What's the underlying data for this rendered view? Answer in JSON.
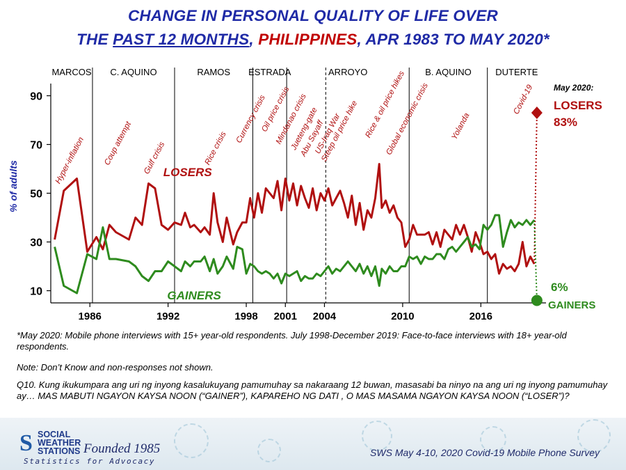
{
  "title": {
    "line1": "CHANGE IN PERSONAL QUALITY OF LIFE OVER",
    "line2_prefix": "THE ",
    "line2_underlined": "PAST 12 MONTHS",
    "line2_sep1": ", ",
    "line2_country": "PHILIPPINES",
    "line2_rest": ", APR 1983 TO MAY 2020*"
  },
  "colors": {
    "losers": "#b01010",
    "gainers": "#2e8b1e",
    "title_blue": "#1f2aa6",
    "title_red": "#c00000"
  },
  "chart_data": {
    "type": "line",
    "title": "CHANGE IN PERSONAL QUALITY OF LIFE OVER THE PAST 12 MONTHS, PHILIPPINES, APR 1983 TO MAY 2020*",
    "ylabel": "% of adults",
    "xlabel": "",
    "xlim": [
      1983.0,
      2021.0
    ],
    "ylim": [
      5,
      95
    ],
    "yticks": [
      10,
      30,
      50,
      70,
      90
    ],
    "xticks": [
      1986,
      1992,
      1998,
      2001,
      2004,
      2010,
      2016
    ],
    "administrations": [
      {
        "name": "MARCOS",
        "start": 1983.0,
        "end": 1986.2
      },
      {
        "name": "C. AQUINO",
        "start": 1986.2,
        "end": 1992.5
      },
      {
        "name": "RAMOS",
        "start": 1992.5,
        "end": 1998.5
      },
      {
        "name": "ESTRADA",
        "start": 1998.5,
        "end": 2001.1
      },
      {
        "name": "ARROYO",
        "start": 2001.1,
        "end": 2010.5
      },
      {
        "name": "B. AQUINO",
        "start": 2010.5,
        "end": 2016.5
      },
      {
        "name": "DUTERTE",
        "start": 2016.5,
        "end": 2021.0
      }
    ],
    "dashed_dividers": [
      2004.1
    ],
    "series": [
      {
        "name": "LOSERS",
        "x": [
          1983.3,
          1984.0,
          1985.0,
          1985.8,
          1986.5,
          1987.0,
          1987.5,
          1988.0,
          1989.0,
          1989.5,
          1990.0,
          1990.5,
          1991.0,
          1991.5,
          1992.0,
          1992.5,
          1993.0,
          1993.3,
          1993.7,
          1994.0,
          1994.5,
          1994.8,
          1995.2,
          1995.5,
          1995.8,
          1996.2,
          1996.5,
          1997.0,
          1997.3,
          1997.7,
          1998.0,
          1998.3,
          1998.6,
          1998.9,
          1999.2,
          1999.5,
          1999.8,
          2000.1,
          2000.4,
          2000.7,
          2001.0,
          2001.3,
          2001.6,
          2001.9,
          2002.2,
          2002.5,
          2002.8,
          2003.1,
          2003.4,
          2003.7,
          2004.0,
          2004.3,
          2004.6,
          2004.9,
          2005.2,
          2005.5,
          2005.8,
          2006.1,
          2006.4,
          2006.7,
          2007.0,
          2007.3,
          2007.6,
          2007.9,
          2008.2,
          2008.4,
          2008.7,
          2009.0,
          2009.3,
          2009.6,
          2009.9,
          2010.2,
          2010.5,
          2010.8,
          2011.1,
          2011.4,
          2011.7,
          2012.0,
          2012.3,
          2012.6,
          2012.9,
          2013.2,
          2013.5,
          2013.8,
          2014.1,
          2014.4,
          2014.7,
          2015.0,
          2015.3,
          2015.6,
          2015.9,
          2016.2,
          2016.5,
          2016.8,
          2017.1,
          2017.4,
          2017.7,
          2018.0,
          2018.3,
          2018.6,
          2018.9,
          2019.2,
          2019.5,
          2019.8,
          2020.1
        ],
        "values": [
          31,
          51,
          56,
          26,
          32,
          27,
          37,
          34,
          31,
          40,
          37,
          54,
          52,
          37,
          35,
          38,
          37,
          42,
          36,
          37,
          34,
          36,
          33,
          50,
          38,
          30,
          40,
          29,
          34,
          38,
          38,
          48,
          40,
          50,
          42,
          52,
          50,
          48,
          55,
          43,
          56,
          47,
          54,
          45,
          53,
          48,
          44,
          52,
          43,
          50,
          47,
          52,
          45,
          48,
          51,
          46,
          40,
          49,
          37,
          46,
          35,
          43,
          40,
          48,
          62,
          44,
          47,
          42,
          45,
          40,
          38,
          28,
          31,
          37,
          33,
          33,
          33,
          34,
          29,
          34,
          28,
          35,
          33,
          31,
          37,
          33,
          37,
          32,
          26,
          34,
          30,
          25,
          26,
          23,
          25,
          17,
          21,
          19,
          20,
          18,
          21,
          30,
          20,
          24,
          21
        ]
      },
      {
        "name": "GAINERS",
        "x": [
          1983.3,
          1984.0,
          1985.0,
          1985.8,
          1986.5,
          1987.0,
          1987.5,
          1988.0,
          1989.0,
          1989.5,
          1990.0,
          1990.5,
          1991.0,
          1991.5,
          1992.0,
          1992.5,
          1993.0,
          1993.3,
          1993.7,
          1994.0,
          1994.5,
          1994.8,
          1995.2,
          1995.5,
          1995.8,
          1996.2,
          1996.5,
          1997.0,
          1997.3,
          1997.7,
          1998.0,
          1998.3,
          1998.6,
          1998.9,
          1999.2,
          1999.5,
          1999.8,
          2000.1,
          2000.4,
          2000.7,
          2001.0,
          2001.3,
          2001.6,
          2001.9,
          2002.2,
          2002.5,
          2002.8,
          2003.1,
          2003.4,
          2003.7,
          2004.0,
          2004.3,
          2004.6,
          2004.9,
          2005.2,
          2005.5,
          2005.8,
          2006.1,
          2006.4,
          2006.7,
          2007.0,
          2007.3,
          2007.6,
          2007.9,
          2008.2,
          2008.4,
          2008.7,
          2009.0,
          2009.3,
          2009.6,
          2009.9,
          2010.2,
          2010.5,
          2010.8,
          2011.1,
          2011.4,
          2011.7,
          2012.0,
          2012.3,
          2012.6,
          2012.9,
          2013.2,
          2013.5,
          2013.8,
          2014.1,
          2014.4,
          2014.7,
          2015.0,
          2015.3,
          2015.6,
          2015.9,
          2016.2,
          2016.5,
          2016.8,
          2017.1,
          2017.4,
          2017.7,
          2018.0,
          2018.3,
          2018.6,
          2018.9,
          2019.2,
          2019.5,
          2019.8,
          2020.1
        ],
        "values": [
          28,
          12,
          9,
          25,
          23,
          36,
          23,
          23,
          22,
          20,
          16,
          14,
          18,
          18,
          22,
          20,
          18,
          22,
          20,
          22,
          22,
          24,
          18,
          23,
          17,
          20,
          24,
          19,
          28,
          27,
          17,
          21,
          20,
          18,
          17,
          18,
          17,
          15,
          17,
          13,
          17,
          16,
          17,
          18,
          14,
          16,
          15,
          15,
          17,
          16,
          18,
          20,
          17,
          19,
          18,
          20,
          22,
          20,
          18,
          21,
          17,
          20,
          16,
          20,
          12,
          19,
          17,
          20,
          18,
          18,
          20,
          20,
          24,
          23,
          24,
          21,
          24,
          23,
          23,
          25,
          25,
          23,
          27,
          28,
          26,
          28,
          30,
          32,
          28,
          29,
          27,
          37,
          35,
          37,
          41,
          41,
          28,
          34,
          39,
          36,
          38,
          37,
          39,
          37,
          39
        ]
      }
    ],
    "may_2020": {
      "x": 2020.3,
      "losers": 83,
      "gainers": 6,
      "connect_from_losers": 21,
      "connect_from_gainers": 39
    },
    "series_labels": {
      "losers": "LOSERS",
      "gainers": "GAINERS"
    },
    "callout": {
      "header": "May 2020:",
      "losers_label": "LOSERS",
      "losers_value": "83%",
      "gainers_value": "6%",
      "gainers_label": "GAINERS"
    },
    "annotations": [
      {
        "text": "Hyper-inflation",
        "x": 1984.6,
        "y": 63
      },
      {
        "text": "Coup attempt",
        "x": 1988.3,
        "y": 70
      },
      {
        "text": "Gulf crisis",
        "x": 1991.1,
        "y": 64
      },
      {
        "text": "Rice crisis",
        "x": 1995.8,
        "y": 68
      },
      {
        "text": "Currency crisis",
        "x": 1998.5,
        "y": 80
      },
      {
        "text": "Oil price crisis",
        "x": 2000.4,
        "y": 84
      },
      {
        "text": "Mindanao crisis",
        "x": 2001.6,
        "y": 80
      },
      {
        "text": "Jueteng-gate",
        "x": 2002.6,
        "y": 76
      },
      {
        "text": "Abu Sayaff",
        "x": 2003.2,
        "y": 72
      },
      {
        "text": "US-Iraq War",
        "x": 2004.4,
        "y": 74
      },
      {
        "text": "Steep oil price hike",
        "x": 2005.3,
        "y": 75
      },
      {
        "text": "Rice & oil price hikes",
        "x": 2008.8,
        "y": 86
      },
      {
        "text": "Global economic crisis",
        "x": 2010.5,
        "y": 80
      },
      {
        "text": "Yolanda",
        "x": 2014.6,
        "y": 77
      },
      {
        "text": "Covid-19",
        "x": 2019.4,
        "y": 88
      }
    ]
  },
  "footnotes": {
    "note1": "*May 2020: Mobile phone interviews with 15+ year-old respondents. July 1998-December 2019: Face-to-face interviews with 18+ year-old respondents.",
    "note2": "Note: Don’t Know and non-responses not shown.",
    "question": "Q10. Kung ikukumpara ang uri ng inyong kasalukuyang pamumuhay sa nakaraang 12 buwan, masasabi ba ninyo na ang uri ng inyong pamumuhay ay… MAS MABUTI NGAYON KAYSA NOON (“GAINER”), KAPAREHO NG DATI , O MAS MASAMA NGAYON KAYSA NOON (“LOSER”)?"
  },
  "branding": {
    "logo_icon": "sws-s-logo-icon",
    "org_line1": "SOCIAL",
    "org_line2": "WEATHER",
    "org_line3": "STATIONS",
    "founded": "Founded 1985",
    "tagline": "Statistics for Advocacy",
    "survey": "SWS May 4-10, 2020 Covid-19 Mobile Phone Survey"
  }
}
